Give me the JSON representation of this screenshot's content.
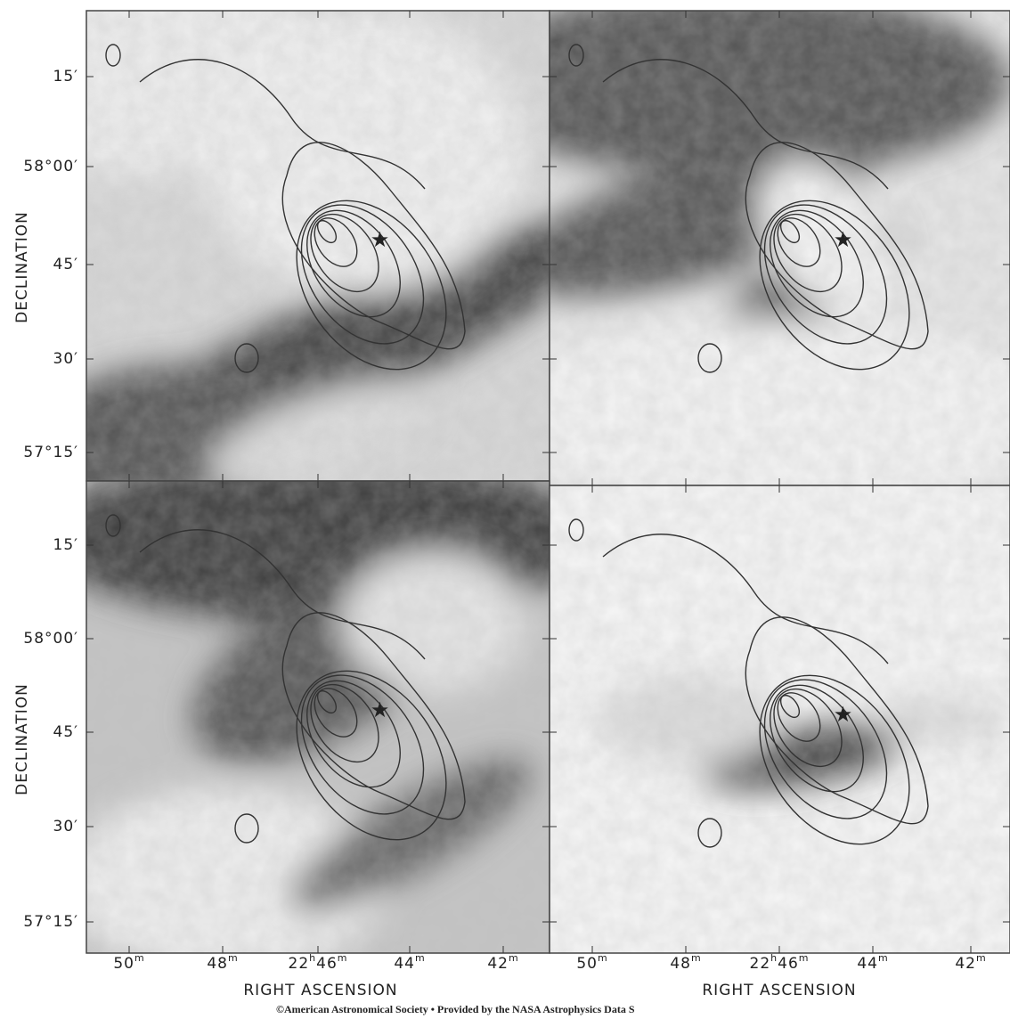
{
  "axes": {
    "y_label": "DECLINATION",
    "x_label": "RIGHT ASCENSION",
    "y_ticks": [
      "15′",
      "58°00′",
      "45′",
      "30′",
      "57°15′"
    ],
    "x_ticks": [
      [
        "50",
        "m"
      ],
      [
        "48",
        "m"
      ],
      [
        "22",
        "h",
        "46",
        "m"
      ],
      [
        "44",
        "m"
      ],
      [
        "42",
        "m"
      ]
    ]
  },
  "footer": "©American Astronomical Society • Provided by the NASA Astrophysics Data S"
}
